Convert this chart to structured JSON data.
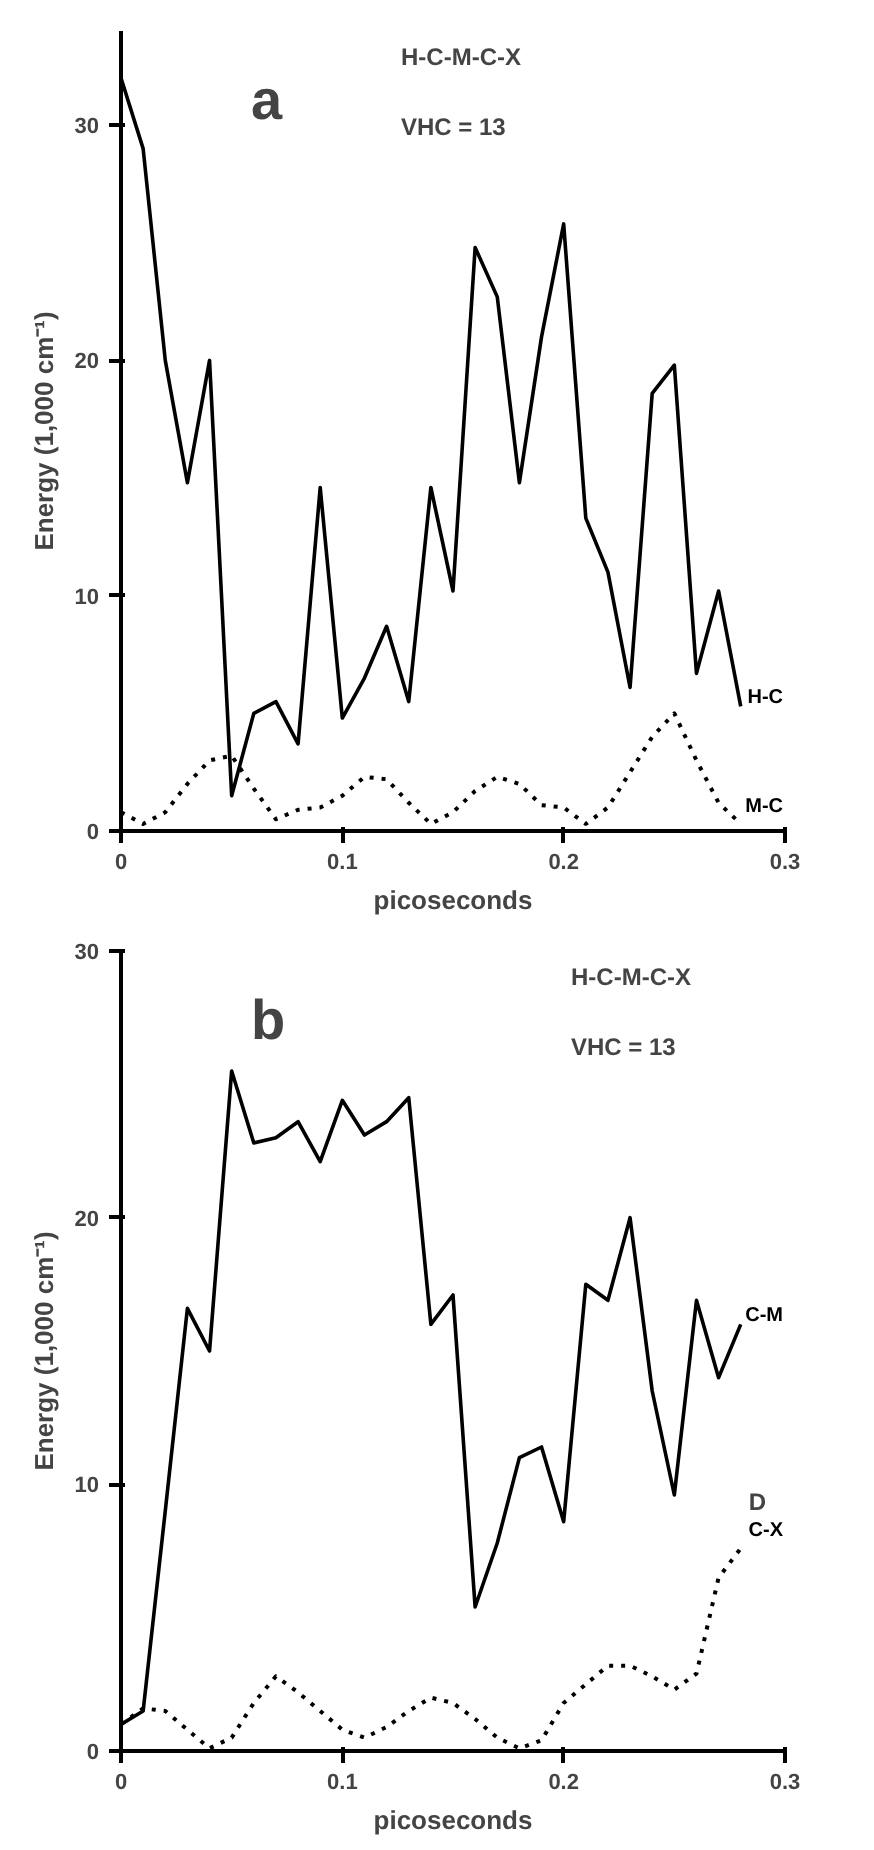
{
  "chart_data": [
    {
      "type": "line",
      "xlabel": "picoseconds",
      "ylabel": "Energy (1,000 cm⁻¹)",
      "xlim": [
        0,
        0.3
      ],
      "ylim": [
        0,
        34
      ],
      "xticks": [
        0,
        0.1,
        0.2,
        0.3
      ],
      "yticks": [
        0,
        10,
        20,
        30
      ],
      "grid": false,
      "marker": "none",
      "annotations": [
        "a",
        "H-C-M-C-X",
        "VHC = 13"
      ],
      "x": [
        0,
        0.01,
        0.02,
        0.03,
        0.04,
        0.05,
        0.06,
        0.07,
        0.08,
        0.09,
        0.1,
        0.11,
        0.12,
        0.13,
        0.14,
        0.15,
        0.16,
        0.17,
        0.18,
        0.19,
        0.2,
        0.21,
        0.22,
        0.23,
        0.24,
        0.25,
        0.26,
        0.27,
        0.28
      ],
      "series": [
        {
          "name": "H-C",
          "color": "#000000",
          "line_style": "solid",
          "values": [
            32,
            29,
            20,
            14.8,
            20,
            1.5,
            5,
            5.5,
            3.7,
            14.6,
            4.8,
            6.5,
            8.7,
            5.5,
            14.6,
            10.2,
            24.8,
            22.7,
            14.8,
            21,
            25.8,
            13.3,
            11,
            6.1,
            18.6,
            19.8,
            6.7,
            10.2,
            5.3
          ]
        },
        {
          "name": "M-C",
          "color": "#000000",
          "line_style": "dotted",
          "values": [
            0.8,
            0.3,
            0.8,
            2,
            3,
            3.2,
            1.8,
            0.5,
            0.9,
            1,
            1.5,
            2.3,
            2.2,
            1.2,
            0.3,
            0.8,
            1.7,
            2.3,
            2,
            1.1,
            1,
            0.3,
            1,
            2.5,
            4,
            5,
            3,
            1.2,
            0.3
          ]
        }
      ]
    },
    {
      "type": "line",
      "xlabel": "picoseconds",
      "ylabel": "Energy (1,000 cm⁻¹)",
      "xlim": [
        0,
        0.3
      ],
      "ylim": [
        0,
        30
      ],
      "xticks": [
        0,
        0.1,
        0.2,
        0.3
      ],
      "yticks": [
        0,
        10,
        20,
        30
      ],
      "grid": false,
      "marker": "none",
      "annotations": [
        "b",
        "H-C-M-C-X",
        "VHC = 13",
        {
          "text": "D",
          "x": 0.28,
          "y": 7.6
        }
      ],
      "x": [
        0,
        0.01,
        0.02,
        0.03,
        0.04,
        0.05,
        0.06,
        0.07,
        0.08,
        0.09,
        0.1,
        0.11,
        0.12,
        0.13,
        0.14,
        0.15,
        0.16,
        0.17,
        0.18,
        0.19,
        0.2,
        0.21,
        0.22,
        0.23,
        0.24,
        0.25,
        0.26,
        0.27,
        0.28
      ],
      "series": [
        {
          "name": "C-M",
          "color": "#000000",
          "line_style": "solid",
          "values": [
            1,
            1.5,
            9,
            16.6,
            15,
            25.5,
            22.8,
            23,
            23.6,
            22.1,
            24.4,
            23.1,
            23.6,
            24.5,
            16,
            17.1,
            5.4,
            7.8,
            11,
            11.4,
            8.6,
            17.5,
            16.9,
            20,
            13.5,
            9.6,
            16.9,
            14,
            16
          ]
        },
        {
          "name": "C-X",
          "color": "#000000",
          "line_style": "dotted",
          "values": [
            1,
            1.6,
            1.5,
            0.8,
            0.1,
            0.5,
            1.8,
            2.8,
            2.2,
            1.5,
            0.8,
            0.5,
            0.9,
            1.5,
            2,
            1.8,
            1.2,
            0.5,
            0.1,
            0.4,
            1.8,
            2.5,
            3.2,
            3.2,
            2.8,
            2.3,
            2.9,
            6.5,
            7.6
          ]
        }
      ]
    }
  ]
}
